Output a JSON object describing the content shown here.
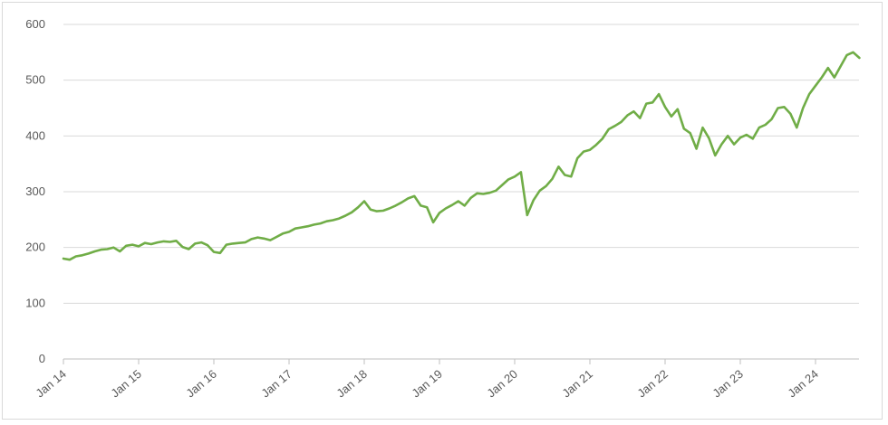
{
  "chart_data": {
    "type": "line",
    "title": "",
    "xlabel": "",
    "ylabel": "",
    "ylim": [
      0,
      600
    ],
    "yticks": [
      0,
      100,
      200,
      300,
      400,
      500,
      600
    ],
    "x_tick_labels": [
      "Jan 14",
      "Jan 15",
      "Jan 16",
      "Jan 17",
      "Jan 18",
      "Jan 19",
      "Jan 20",
      "Jan 21",
      "Jan 22",
      "Jan 23",
      "Jan 24"
    ],
    "grid": "horizontal",
    "legend": "none",
    "line_color": "#70ad47",
    "series": [
      {
        "x": [
          "2014-01",
          "2014-02",
          "2014-03",
          "2014-04",
          "2014-05",
          "2014-06",
          "2014-07",
          "2014-08",
          "2014-09",
          "2014-10",
          "2014-11",
          "2014-12",
          "2015-01",
          "2015-02",
          "2015-03",
          "2015-04",
          "2015-05",
          "2015-06",
          "2015-07",
          "2015-08",
          "2015-09",
          "2015-10",
          "2015-11",
          "2015-12",
          "2016-01",
          "2016-02",
          "2016-03",
          "2016-04",
          "2016-05",
          "2016-06",
          "2016-07",
          "2016-08",
          "2016-09",
          "2016-10",
          "2016-11",
          "2016-12",
          "2017-01",
          "2017-02",
          "2017-03",
          "2017-04",
          "2017-05",
          "2017-06",
          "2017-07",
          "2017-08",
          "2017-09",
          "2017-10",
          "2017-11",
          "2017-12",
          "2018-01",
          "2018-02",
          "2018-03",
          "2018-04",
          "2018-05",
          "2018-06",
          "2018-07",
          "2018-08",
          "2018-09",
          "2018-10",
          "2018-11",
          "2018-12",
          "2019-01",
          "2019-02",
          "2019-03",
          "2019-04",
          "2019-05",
          "2019-06",
          "2019-07",
          "2019-08",
          "2019-09",
          "2019-10",
          "2019-11",
          "2019-12",
          "2020-01",
          "2020-02",
          "2020-03",
          "2020-04",
          "2020-05",
          "2020-06",
          "2020-07",
          "2020-08",
          "2020-09",
          "2020-10",
          "2020-11",
          "2020-12",
          "2021-01",
          "2021-02",
          "2021-03",
          "2021-04",
          "2021-05",
          "2021-06",
          "2021-07",
          "2021-08",
          "2021-09",
          "2021-10",
          "2021-11",
          "2021-12",
          "2022-01",
          "2022-02",
          "2022-03",
          "2022-04",
          "2022-05",
          "2022-06",
          "2022-07",
          "2022-08",
          "2022-09",
          "2022-10",
          "2022-11",
          "2022-12",
          "2023-01",
          "2023-02",
          "2023-03",
          "2023-04",
          "2023-05",
          "2023-06",
          "2023-07",
          "2023-08",
          "2023-09",
          "2023-10",
          "2023-11",
          "2023-12",
          "2024-01",
          "2024-02",
          "2024-03",
          "2024-04",
          "2024-05",
          "2024-06",
          "2024-07",
          "2024-08"
        ],
        "values": [
          180,
          178,
          184,
          186,
          189,
          193,
          196,
          197,
          200,
          193,
          203,
          205,
          202,
          208,
          206,
          209,
          211,
          210,
          212,
          201,
          197,
          207,
          209,
          204,
          192,
          190,
          205,
          207,
          208,
          209,
          215,
          218,
          216,
          213,
          219,
          225,
          228,
          234,
          236,
          238,
          241,
          243,
          247,
          249,
          252,
          257,
          263,
          272,
          283,
          268,
          265,
          266,
          270,
          275,
          281,
          288,
          292,
          275,
          272,
          245,
          262,
          270,
          276,
          283,
          275,
          289,
          297,
          296,
          298,
          302,
          312,
          322,
          327,
          335,
          258,
          285,
          302,
          310,
          323,
          345,
          330,
          327,
          360,
          372,
          375,
          384,
          395,
          412,
          418,
          425,
          437,
          444,
          432,
          458,
          460,
          475,
          452,
          435,
          448,
          413,
          405,
          377,
          415,
          396,
          365,
          385,
          400,
          385,
          397,
          402,
          395,
          415,
          420,
          430,
          450,
          452,
          440,
          415,
          450,
          475,
          490,
          505,
          522,
          505,
          525,
          545,
          550,
          540
        ]
      }
    ]
  }
}
